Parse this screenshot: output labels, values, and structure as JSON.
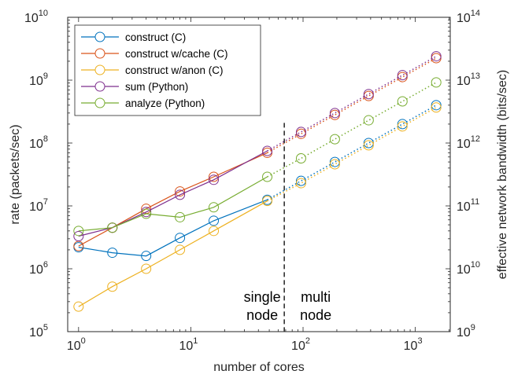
{
  "chart_data": {
    "type": "line",
    "xlabel": "number of cores",
    "ylabel": "rate (packets/sec)",
    "y2label": "effective network bandwidth (bits/sec)",
    "xscale": "log",
    "yscale": "log",
    "xlim": [
      0.8,
      2048
    ],
    "ylim": [
      100000,
      10000000000
    ],
    "y2lim": [
      1000000000,
      100000000000000
    ],
    "x_tick_labels": [
      {
        "base": "10",
        "exp": "0"
      },
      {
        "base": "10",
        "exp": "1"
      },
      {
        "base": "10",
        "exp": "2"
      },
      {
        "base": "10",
        "exp": "3"
      }
    ],
    "y_tick_labels": [
      {
        "base": "10",
        "exp": "5"
      },
      {
        "base": "10",
        "exp": "6"
      },
      {
        "base": "10",
        "exp": "7"
      },
      {
        "base": "10",
        "exp": "8"
      },
      {
        "base": "10",
        "exp": "9"
      },
      {
        "base": "10",
        "exp": "10"
      }
    ],
    "y2_tick_labels": [
      {
        "base": "10",
        "exp": "9"
      },
      {
        "base": "10",
        "exp": "10"
      },
      {
        "base": "10",
        "exp": "11"
      },
      {
        "base": "10",
        "exp": "12"
      },
      {
        "base": "10",
        "exp": "13"
      },
      {
        "base": "10",
        "exp": "14"
      }
    ],
    "legend_position": "top-left",
    "divider_x": 68,
    "annotations": [
      {
        "lines": [
          "single",
          "node"
        ],
        "side": "left"
      },
      {
        "lines": [
          "multi",
          "node"
        ],
        "side": "right"
      }
    ],
    "series": [
      {
        "name": "construct (C)",
        "color": "#0072BD",
        "single_node": {
          "x": [
            1,
            2,
            4,
            8,
            16,
            48
          ],
          "y": [
            2200000,
            1800000,
            1600000,
            3100000,
            5800000,
            12500000
          ]
        },
        "multi_node": {
          "x": [
            48,
            96,
            192,
            384,
            768,
            1536
          ],
          "y": [
            12500000,
            25000000,
            50000000,
            100000000,
            200000000,
            400000000
          ]
        }
      },
      {
        "name": "construct w/cache (C)",
        "color": "#D95319",
        "single_node": {
          "x": [
            1,
            2,
            4,
            8,
            16,
            48
          ],
          "y": [
            2300000,
            4500000,
            9000000,
            17000000,
            29000000,
            70000000
          ]
        },
        "multi_node": {
          "x": [
            48,
            96,
            192,
            384,
            768,
            1536
          ],
          "y": [
            70000000,
            140000000,
            280000000,
            560000000,
            1120000000,
            2240000000
          ]
        }
      },
      {
        "name": "construct w/anon (C)",
        "color": "#EDB120",
        "single_node": {
          "x": [
            1,
            2,
            4,
            8,
            16,
            48
          ],
          "y": [
            250000,
            520000,
            1000000,
            2000000,
            4000000,
            12000000
          ]
        },
        "multi_node": {
          "x": [
            48,
            96,
            192,
            384,
            768,
            1536
          ],
          "y": [
            12000000,
            23000000,
            46000000,
            92000000,
            184000000,
            368000000
          ]
        }
      },
      {
        "name": "sum (Python)",
        "color": "#7E2F8E",
        "single_node": {
          "x": [
            1,
            2,
            4,
            8,
            16,
            48
          ],
          "y": [
            3300000,
            4500000,
            8000000,
            15000000,
            26000000,
            75000000
          ]
        },
        "multi_node": {
          "x": [
            48,
            96,
            192,
            384,
            768,
            1536
          ],
          "y": [
            75000000,
            150000000,
            300000000,
            600000000,
            1200000000,
            2400000000
          ]
        }
      },
      {
        "name": "analyze (Python)",
        "color": "#77AC30",
        "single_node": {
          "x": [
            1,
            2,
            4,
            8,
            16,
            48
          ],
          "y": [
            4000000,
            4500000,
            7500000,
            6600000,
            9500000,
            29000000
          ]
        },
        "multi_node": {
          "x": [
            48,
            96,
            192,
            384,
            768,
            1536
          ],
          "y": [
            29000000,
            57000000,
            115000000,
            230000000,
            460000000,
            920000000
          ]
        }
      }
    ]
  }
}
